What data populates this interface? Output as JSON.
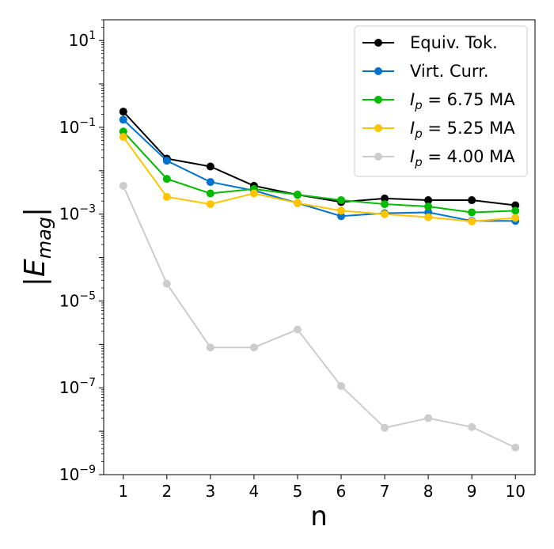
{
  "chart_data": {
    "type": "line",
    "x": [
      1,
      2,
      3,
      4,
      5,
      6,
      7,
      8,
      9,
      10
    ],
    "xlabel": "n",
    "ylabel": "|E_mag|",
    "yscale": "log",
    "xlim": [
      0.55,
      10.45
    ],
    "ylim": [
      1e-09,
      30
    ],
    "x_ticks": [
      "1",
      "2",
      "3",
      "4",
      "5",
      "6",
      "7",
      "8",
      "9",
      "10"
    ],
    "y_ticks": [
      {
        "value": 1e-09,
        "base": "10",
        "exp": "−9"
      },
      {
        "value": 1e-07,
        "base": "10",
        "exp": "−7"
      },
      {
        "value": 1e-05,
        "base": "10",
        "exp": "−5"
      },
      {
        "value": 0.001,
        "base": "10",
        "exp": "−3"
      },
      {
        "value": 0.1,
        "base": "10",
        "exp": "−1"
      },
      {
        "value": 10,
        "base": "10",
        "exp": "1"
      }
    ],
    "legend_position": "top-right",
    "series": [
      {
        "name": "Equiv. Tok.",
        "label_text": "Equiv. Tok.",
        "color": "#000000",
        "values": [
          0.23,
          0.019,
          0.0125,
          0.0045,
          0.0028,
          0.0019,
          0.0023,
          0.0021,
          0.0021,
          0.0016
        ]
      },
      {
        "name": "Virt. Curr.",
        "label_text": "Virt. Curr.",
        "color": "#0072cf",
        "values": [
          0.15,
          0.017,
          0.0055,
          0.0035,
          0.0018,
          0.0009,
          0.00105,
          0.0011,
          0.0007,
          0.0007
        ]
      },
      {
        "name": "I_p = 6.75 MA",
        "label_sym": "I",
        "label_sub": "p",
        "label_rest": " = 6.75 MA",
        "color": "#00bb00",
        "values": [
          0.08,
          0.0065,
          0.003,
          0.0038,
          0.0028,
          0.0021,
          0.0017,
          0.0015,
          0.0011,
          0.0012
        ]
      },
      {
        "name": "I_p = 5.25 MA",
        "label_sym": "I",
        "label_sub": "p",
        "label_rest": " = 5.25 MA",
        "color": "#ffc400",
        "values": [
          0.06,
          0.0025,
          0.0017,
          0.003,
          0.0018,
          0.0012,
          0.001,
          0.00085,
          0.00068,
          0.00082
        ]
      },
      {
        "name": "I_p = 4.00 MA",
        "label_sym": "I",
        "label_sub": "p",
        "label_rest": " = 4.00 MA",
        "color": "#cccccc",
        "values": [
          0.0045,
          2.5e-05,
          8.5e-07,
          8.5e-07,
          2.2e-06,
          1.1e-07,
          1.2e-08,
          2e-08,
          1.25e-08,
          4.2e-09
        ]
      }
    ]
  }
}
